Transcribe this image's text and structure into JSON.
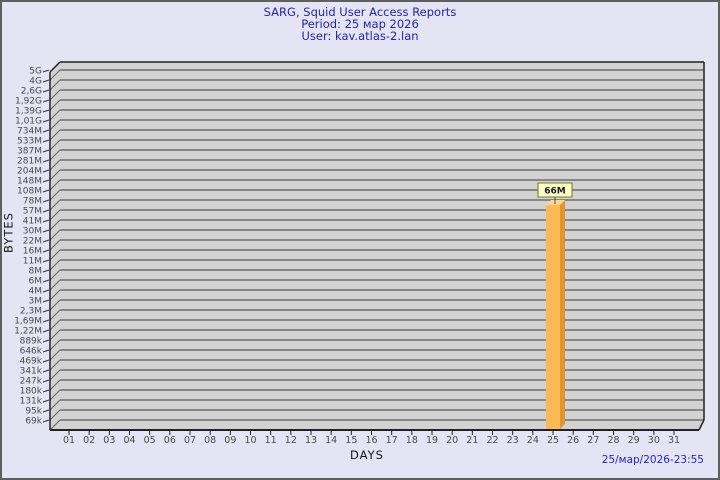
{
  "header": {
    "title": "SARG, Squid User Access Reports",
    "period": "Period: 25 мар 2026",
    "user": "User: kav.atlas-2.lan"
  },
  "footer": {
    "timestamp": "25/мар/2026-23:55"
  },
  "chart_data": {
    "type": "bar",
    "title": "SARG, Squid User Access Reports",
    "subtitle_lines": [
      "Period: 25 мар 2026",
      "User: kav.atlas-2.lan"
    ],
    "xlabel": "DAYS",
    "ylabel": "BYTES",
    "y_scale": "log",
    "grid": true,
    "y_tick_labels": [
      "5G",
      "4G",
      "2,6G",
      "1,92G",
      "1,39G",
      "1,01G",
      "734M",
      "533M",
      "387M",
      "281M",
      "204M",
      "148M",
      "108M",
      "78M",
      "57M",
      "41M",
      "30M",
      "22M",
      "16M",
      "11M",
      "8M",
      "6M",
      "4M",
      "3M",
      "2,3M",
      "1,69M",
      "1,22M",
      "889k",
      "646k",
      "469k",
      "341k",
      "247k",
      "180k",
      "131k",
      "95k",
      "69k"
    ],
    "x_tick_labels": [
      "01",
      "02",
      "03",
      "04",
      "05",
      "06",
      "07",
      "08",
      "09",
      "10",
      "11",
      "12",
      "13",
      "14",
      "15",
      "16",
      "17",
      "18",
      "19",
      "20",
      "21",
      "22",
      "23",
      "24",
      "25",
      "26",
      "27",
      "28",
      "29",
      "30",
      "31"
    ],
    "bars": [
      {
        "x": "25",
        "label": "66M"
      }
    ]
  },
  "colors": {
    "background": "#E4E4F4",
    "plot_band": "#D2D2D2",
    "gridline": "#6E6E6E",
    "axis_edge": "#222222",
    "tick_label": "#4A4A4A",
    "title_text": "#2424AA",
    "timestamp_text": "#2424C8",
    "bar_face": "#FBBA55",
    "bar_side": "#E0952E",
    "bar_top": "#FFD98F",
    "flag_bg": "#FFFFC8",
    "flag_border": "#777722",
    "flag_text": "#1A1A1A"
  }
}
